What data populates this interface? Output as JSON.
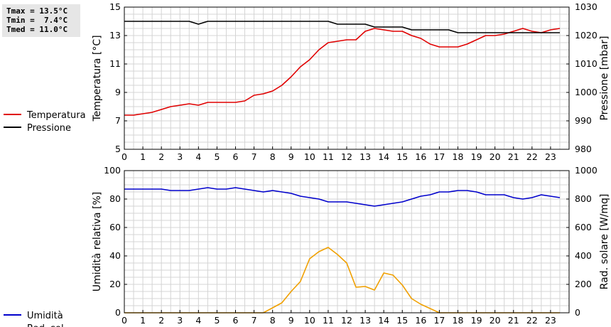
{
  "stats": {
    "tmax": "Tmax = 13.5°C",
    "tmin": "Tmin =  7.4°C",
    "tmed": "Tmed = 11.0°C"
  },
  "chart_data": [
    {
      "type": "line",
      "xlabel": "",
      "ylabel": "Temperatura [°C]",
      "y2label": "Pressione [mbar]",
      "xlim": [
        0,
        24
      ],
      "xticks": [
        "0",
        "1",
        "2",
        "3",
        "4",
        "5",
        "6",
        "7",
        "8",
        "9",
        "10",
        "11",
        "12",
        "13",
        "14",
        "15",
        "16",
        "17",
        "18",
        "19",
        "20",
        "21",
        "22",
        "23"
      ],
      "ylim": [
        5,
        15
      ],
      "yticks": [
        "5",
        "7",
        "9",
        "11",
        "13",
        "15"
      ],
      "y2lim": [
        980,
        1030
      ],
      "y2ticks": [
        "980",
        "990",
        "1000",
        "1010",
        "1020",
        "1030"
      ],
      "grid": true,
      "legend_placement": "left",
      "series": [
        {
          "name": "Temperatura",
          "axis": "left",
          "color": "#e00000",
          "x": [
            0,
            0.5,
            1,
            1.5,
            2,
            2.5,
            3,
            3.5,
            4,
            4.5,
            5,
            5.5,
            6,
            6.5,
            7,
            7.5,
            8,
            8.5,
            9,
            9.5,
            10,
            10.5,
            11,
            11.5,
            12,
            12.5,
            13,
            13.5,
            14,
            14.5,
            15,
            15.5,
            16,
            16.5,
            17,
            17.5,
            18,
            18.5,
            19,
            19.5,
            20,
            20.5,
            21,
            21.5,
            22,
            22.5,
            23,
            23.5
          ],
          "values": [
            7.4,
            7.4,
            7.5,
            7.6,
            7.8,
            8.0,
            8.1,
            8.2,
            8.1,
            8.3,
            8.3,
            8.3,
            8.3,
            8.4,
            8.8,
            8.9,
            9.1,
            9.5,
            10.1,
            10.8,
            11.3,
            12.0,
            12.5,
            12.6,
            12.7,
            12.7,
            13.3,
            13.5,
            13.4,
            13.3,
            13.3,
            13.0,
            12.8,
            12.4,
            12.2,
            12.2,
            12.2,
            12.4,
            12.7,
            13.0,
            13.0,
            13.1,
            13.3,
            13.5,
            13.3,
            13.2,
            13.4,
            13.5
          ]
        },
        {
          "name": "Pressione",
          "axis": "right",
          "color": "#000000",
          "x": [
            0,
            3.5,
            4,
            4.5,
            11,
            11.5,
            13,
            13.5,
            15,
            15.5,
            17.5,
            18,
            23.5
          ],
          "values": [
            1025,
            1025,
            1024,
            1025,
            1025,
            1024,
            1024,
            1023,
            1023,
            1022,
            1022,
            1021,
            1021
          ]
        }
      ]
    },
    {
      "type": "line",
      "xlabel": "",
      "ylabel": "Umidità relativa [%]",
      "y2label": "Rad. solare [W/mq]",
      "xlim": [
        0,
        24
      ],
      "xticks": [
        "0",
        "1",
        "2",
        "3",
        "4",
        "5",
        "6",
        "7",
        "8",
        "9",
        "10",
        "11",
        "12",
        "13",
        "14",
        "15",
        "16",
        "17",
        "18",
        "19",
        "20",
        "21",
        "22",
        "23"
      ],
      "ylim": [
        0,
        100
      ],
      "yticks": [
        "0",
        "20",
        "40",
        "60",
        "80",
        "100"
      ],
      "y2lim": [
        0,
        1000
      ],
      "y2ticks": [
        "0",
        "200",
        "400",
        "600",
        "800",
        "1000"
      ],
      "grid": true,
      "legend_placement": "left",
      "series": [
        {
          "name": "Umidità",
          "axis": "left",
          "color": "#0000cc",
          "x": [
            0,
            0.5,
            1,
            1.5,
            2,
            2.5,
            3,
            3.5,
            4,
            4.5,
            5,
            5.5,
            6,
            6.5,
            7,
            7.5,
            8,
            8.5,
            9,
            9.5,
            10,
            10.5,
            11,
            11.5,
            12,
            12.5,
            13,
            13.5,
            14,
            14.5,
            15,
            15.5,
            16,
            16.5,
            17,
            17.5,
            18,
            18.5,
            19,
            19.5,
            20,
            20.5,
            21,
            21.5,
            22,
            22.5,
            23,
            23.5
          ],
          "values": [
            87,
            87,
            87,
            87,
            87,
            86,
            86,
            86,
            87,
            88,
            87,
            87,
            88,
            87,
            86,
            85,
            86,
            85,
            84,
            82,
            81,
            80,
            78,
            78,
            78,
            77,
            76,
            75,
            76,
            77,
            78,
            80,
            82,
            83,
            85,
            85,
            86,
            86,
            85,
            83,
            83,
            83,
            81,
            80,
            81,
            83,
            82,
            81
          ]
        },
        {
          "name": "Rad. sol.",
          "axis": "right",
          "color": "#f0a000",
          "x": [
            0,
            0.5,
            1,
            1.5,
            2,
            2.5,
            3,
            3.5,
            4,
            4.5,
            5,
            5.5,
            6,
            6.5,
            7,
            7.5,
            8,
            8.5,
            9,
            9.5,
            10,
            10.5,
            11,
            11.5,
            12,
            12.5,
            13,
            13.5,
            14,
            14.5,
            15,
            15.5,
            16,
            16.5,
            17,
            17.5,
            18,
            18.5,
            19,
            19.5,
            20,
            20.5,
            21,
            21.5,
            22,
            22.5,
            23,
            23.5
          ],
          "values": [
            0,
            0,
            0,
            0,
            0,
            0,
            0,
            0,
            0,
            0,
            0,
            0,
            0,
            0,
            0,
            0,
            35,
            70,
            150,
            220,
            380,
            430,
            460,
            410,
            350,
            180,
            185,
            160,
            280,
            265,
            195,
            100,
            60,
            30,
            0,
            0,
            0,
            0,
            0,
            0,
            0,
            0,
            0,
            0,
            0,
            0,
            0,
            0
          ]
        }
      ]
    }
  ]
}
